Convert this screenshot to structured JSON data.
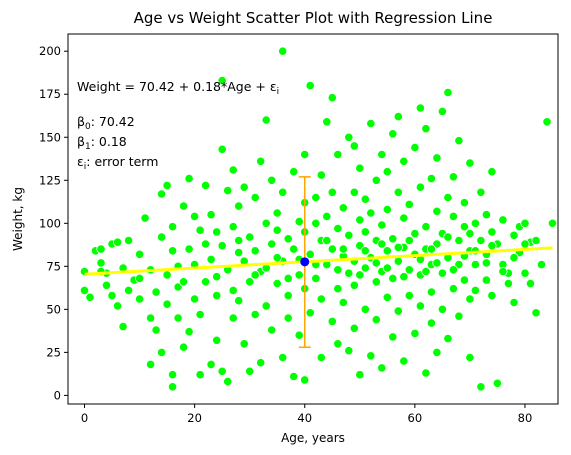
{
  "chart_data": {
    "type": "scatter",
    "title": "Age vs Weight Scatter Plot with Regression Line",
    "xlabel": "Age, years",
    "ylabel": "Weight, kg",
    "xlim": [
      -3,
      86
    ],
    "ylim": [
      -5,
      210
    ],
    "xticks": [
      0,
      20,
      40,
      60,
      80
    ],
    "yticks": [
      0,
      25,
      50,
      75,
      100,
      125,
      150,
      175,
      200
    ],
    "grid": false,
    "point_color": "#00ff00",
    "regression": {
      "intercept": 70.42,
      "slope": 0.18,
      "x_range": [
        0,
        85
      ],
      "color": "#ffff00"
    },
    "highlight_point": {
      "x": 40,
      "y": 77.6,
      "color": "#0000ff"
    },
    "error_bar": {
      "x": 40,
      "low": 28,
      "high": 127,
      "color": "#ffa500"
    },
    "annotation": {
      "equation": "Weight = 70.42 + 0.18*Age + ε",
      "equation_sub": "i",
      "beta0_label": "β",
      "beta0_sub": "0",
      "beta0_value": ": 70.42",
      "beta1_label": "β",
      "beta1_sub": "1",
      "beta1_value": ": 0.18",
      "eps_label": "ε",
      "eps_sub": "i",
      "eps_value": ": error term"
    },
    "points": [
      [
        0,
        72
      ],
      [
        0,
        61
      ],
      [
        1,
        57
      ],
      [
        2,
        84
      ],
      [
        3,
        77
      ],
      [
        3,
        85
      ],
      [
        4,
        71
      ],
      [
        4,
        64
      ],
      [
        5,
        88
      ],
      [
        5,
        58
      ],
      [
        6,
        52
      ],
      [
        6,
        89
      ],
      [
        7,
        74
      ],
      [
        7,
        40
      ],
      [
        8,
        61
      ],
      [
        8,
        90
      ],
      [
        9,
        67
      ],
      [
        10,
        82
      ],
      [
        10,
        56
      ],
      [
        11,
        103
      ],
      [
        12,
        18
      ],
      [
        12,
        45
      ],
      [
        12,
        73
      ],
      [
        13,
        60
      ],
      [
        13,
        38
      ],
      [
        14,
        92
      ],
      [
        14,
        25
      ],
      [
        14,
        117
      ],
      [
        15,
        122
      ],
      [
        15,
        70
      ],
      [
        15,
        53
      ],
      [
        16,
        12
      ],
      [
        16,
        5
      ],
      [
        16,
        98
      ],
      [
        16,
        84
      ],
      [
        17,
        45
      ],
      [
        17,
        63
      ],
      [
        18,
        28
      ],
      [
        18,
        66
      ],
      [
        18,
        110
      ],
      [
        19,
        85
      ],
      [
        19,
        126
      ],
      [
        19,
        37
      ],
      [
        20,
        76
      ],
      [
        20,
        56
      ],
      [
        20,
        104
      ],
      [
        21,
        96
      ],
      [
        21,
        47
      ],
      [
        21,
        12
      ],
      [
        22,
        122
      ],
      [
        22,
        88
      ],
      [
        22,
        66
      ],
      [
        23,
        18
      ],
      [
        23,
        105
      ],
      [
        23,
        79
      ],
      [
        24,
        58
      ],
      [
        24,
        95
      ],
      [
        24,
        32
      ],
      [
        25,
        183
      ],
      [
        25,
        143
      ],
      [
        25,
        14
      ],
      [
        25,
        87
      ],
      [
        26,
        8
      ],
      [
        26,
        119
      ],
      [
        26,
        73
      ],
      [
        27,
        61
      ],
      [
        27,
        98
      ],
      [
        27,
        45
      ],
      [
        27,
        131
      ],
      [
        28,
        110
      ],
      [
        28,
        90
      ],
      [
        28,
        55
      ],
      [
        29,
        30
      ],
      [
        29,
        121
      ],
      [
        29,
        78
      ],
      [
        30,
        66
      ],
      [
        30,
        92
      ],
      [
        30,
        14
      ],
      [
        31,
        47
      ],
      [
        31,
        115
      ],
      [
        31,
        84
      ],
      [
        32,
        19
      ],
      [
        32,
        136
      ],
      [
        32,
        72
      ],
      [
        33,
        160
      ],
      [
        33,
        100
      ],
      [
        33,
        52
      ],
      [
        34,
        88
      ],
      [
        34,
        38
      ],
      [
        34,
        125
      ],
      [
        35,
        65
      ],
      [
        35,
        96
      ],
      [
        35,
        106
      ],
      [
        36,
        200
      ],
      [
        36,
        22
      ],
      [
        36,
        78
      ],
      [
        36,
        118
      ],
      [
        37,
        58
      ],
      [
        37,
        91
      ],
      [
        37,
        45
      ],
      [
        38,
        130
      ],
      [
        38,
        11
      ],
      [
        38,
        85
      ],
      [
        39,
        70
      ],
      [
        39,
        101
      ],
      [
        39,
        35
      ],
      [
        40,
        95
      ],
      [
        40,
        62
      ],
      [
        40,
        140
      ],
      [
        40,
        112
      ],
      [
        40,
        9
      ],
      [
        41,
        180
      ],
      [
        41,
        82
      ],
      [
        41,
        48
      ],
      [
        42,
        100
      ],
      [
        42,
        68
      ],
      [
        42,
        115
      ],
      [
        43,
        128
      ],
      [
        43,
        56
      ],
      [
        43,
        90
      ],
      [
        43,
        22
      ],
      [
        44,
        159
      ],
      [
        44,
        76
      ],
      [
        44,
        104
      ],
      [
        45,
        173
      ],
      [
        45,
        43
      ],
      [
        45,
        85
      ],
      [
        45,
        118
      ],
      [
        46,
        62
      ],
      [
        46,
        97
      ],
      [
        46,
        30
      ],
      [
        46,
        140
      ],
      [
        47,
        81
      ],
      [
        47,
        109
      ],
      [
        47,
        54
      ],
      [
        48,
        150
      ],
      [
        48,
        71
      ],
      [
        48,
        26
      ],
      [
        48,
        93
      ],
      [
        49,
        118
      ],
      [
        49,
        64
      ],
      [
        49,
        145
      ],
      [
        49,
        39
      ],
      [
        50,
        87
      ],
      [
        50,
        102
      ],
      [
        50,
        12
      ],
      [
        50,
        132
      ],
      [
        51,
        74
      ],
      [
        51,
        50
      ],
      [
        51,
        114
      ],
      [
        51,
        95
      ],
      [
        52,
        158
      ],
      [
        52,
        80
      ],
      [
        52,
        106
      ],
      [
        52,
        23
      ],
      [
        53,
        66
      ],
      [
        53,
        125
      ],
      [
        53,
        90
      ],
      [
        53,
        44
      ],
      [
        54,
        140
      ],
      [
        54,
        99
      ],
      [
        54,
        72
      ],
      [
        54,
        16
      ],
      [
        55,
        108
      ],
      [
        55,
        84
      ],
      [
        55,
        57
      ],
      [
        55,
        130
      ],
      [
        56,
        152
      ],
      [
        56,
        91
      ],
      [
        56,
        68
      ],
      [
        56,
        34
      ],
      [
        57,
        162
      ],
      [
        57,
        118
      ],
      [
        57,
        78
      ],
      [
        57,
        49
      ],
      [
        58,
        103
      ],
      [
        58,
        86
      ],
      [
        58,
        136
      ],
      [
        58,
        20
      ],
      [
        59,
        73
      ],
      [
        59,
        111
      ],
      [
        59,
        58
      ],
      [
        60,
        144
      ],
      [
        60,
        94
      ],
      [
        60,
        82
      ],
      [
        60,
        36
      ],
      [
        61,
        167
      ],
      [
        61,
        121
      ],
      [
        61,
        70
      ],
      [
        61,
        52
      ],
      [
        62,
        98
      ],
      [
        62,
        155
      ],
      [
        62,
        85
      ],
      [
        62,
        13
      ],
      [
        63,
        126
      ],
      [
        63,
        76
      ],
      [
        63,
        60
      ],
      [
        63,
        42
      ],
      [
        64,
        107
      ],
      [
        64,
        88
      ],
      [
        64,
        138
      ],
      [
        64,
        25
      ],
      [
        65,
        94
      ],
      [
        65,
        71
      ],
      [
        65,
        165
      ],
      [
        65,
        50
      ],
      [
        66,
        176
      ],
      [
        66,
        115
      ],
      [
        66,
        80
      ],
      [
        66,
        33
      ],
      [
        67,
        104
      ],
      [
        67,
        62
      ],
      [
        67,
        127
      ],
      [
        68,
        90
      ],
      [
        68,
        148
      ],
      [
        68,
        76
      ],
      [
        68,
        46
      ],
      [
        69,
        112
      ],
      [
        69,
        67
      ],
      [
        69,
        98
      ],
      [
        70,
        135
      ],
      [
        70,
        84
      ],
      [
        70,
        56
      ],
      [
        70,
        22
      ],
      [
        71,
        100
      ],
      [
        71,
        76
      ],
      [
        71,
        61
      ],
      [
        72,
        118
      ],
      [
        72,
        5
      ],
      [
        72,
        90
      ],
      [
        73,
        82
      ],
      [
        73,
        67
      ],
      [
        73,
        105
      ],
      [
        74,
        95
      ],
      [
        74,
        58
      ],
      [
        74,
        130
      ],
      [
        75,
        88
      ],
      [
        75,
        7
      ],
      [
        76,
        102
      ],
      [
        76,
        76
      ],
      [
        77,
        71
      ],
      [
        77,
        65
      ],
      [
        78,
        93
      ],
      [
        78,
        54
      ],
      [
        79,
        98
      ],
      [
        79,
        83
      ],
      [
        80,
        100
      ],
      [
        80,
        71
      ],
      [
        81,
        89
      ],
      [
        81,
        65
      ],
      [
        82,
        90
      ],
      [
        82,
        48
      ],
      [
        83,
        76
      ],
      [
        84,
        159
      ],
      [
        85,
        100
      ],
      [
        3,
        72
      ],
      [
        10,
        68
      ],
      [
        17,
        75
      ],
      [
        24,
        69
      ],
      [
        28,
        83
      ],
      [
        31,
        70
      ],
      [
        33,
        74
      ],
      [
        35,
        80
      ],
      [
        37,
        68
      ],
      [
        39,
        79
      ],
      [
        42,
        76
      ],
      [
        44,
        90
      ],
      [
        46,
        73
      ],
      [
        47,
        85
      ],
      [
        49,
        78
      ],
      [
        50,
        70
      ],
      [
        51,
        84
      ],
      [
        53,
        77
      ],
      [
        54,
        88
      ],
      [
        55,
        74
      ],
      [
        57,
        86
      ],
      [
        58,
        69
      ],
      [
        59,
        90
      ],
      [
        61,
        79
      ],
      [
        62,
        72
      ],
      [
        63,
        85
      ],
      [
        64,
        77
      ],
      [
        66,
        92
      ],
      [
        67,
        73
      ],
      [
        69,
        81
      ],
      [
        70,
        94
      ],
      [
        71,
        84
      ],
      [
        73,
        77
      ],
      [
        74,
        87
      ],
      [
        76,
        72
      ],
      [
        78,
        80
      ],
      [
        80,
        88
      ]
    ]
  }
}
